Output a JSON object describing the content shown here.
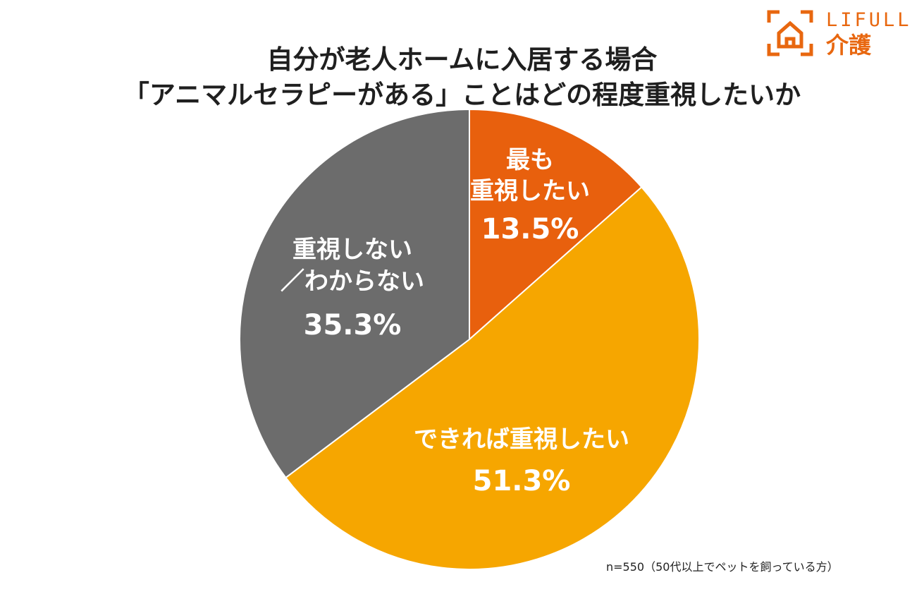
{
  "logo": {
    "brand": "LIFULL",
    "service": "介護",
    "icon": "house-bracket-icon",
    "color": "#e8670f"
  },
  "chart_data": {
    "type": "pie",
    "title": [
      "自分が老人ホームに入居する場合",
      "「アニマルセラピーがある」ことはどの程度重視したいか"
    ],
    "start_angle_deg": 0,
    "direction": "clockwise",
    "slices": [
      {
        "label_lines": [
          "最も",
          "重視したい"
        ],
        "value": 13.5,
        "value_label": "13.5%",
        "color": "#e8600d"
      },
      {
        "label_lines": [
          "できれば重視したい"
        ],
        "value": 51.3,
        "value_label": "51.3%",
        "color": "#f6a600"
      },
      {
        "label_lines": [
          "重視しない",
          "／わからない"
        ],
        "value": 35.3,
        "value_label": "35.3%",
        "color": "#6c6c6c"
      }
    ],
    "note": "n=550（50代以上でペットを飼っている方）"
  }
}
